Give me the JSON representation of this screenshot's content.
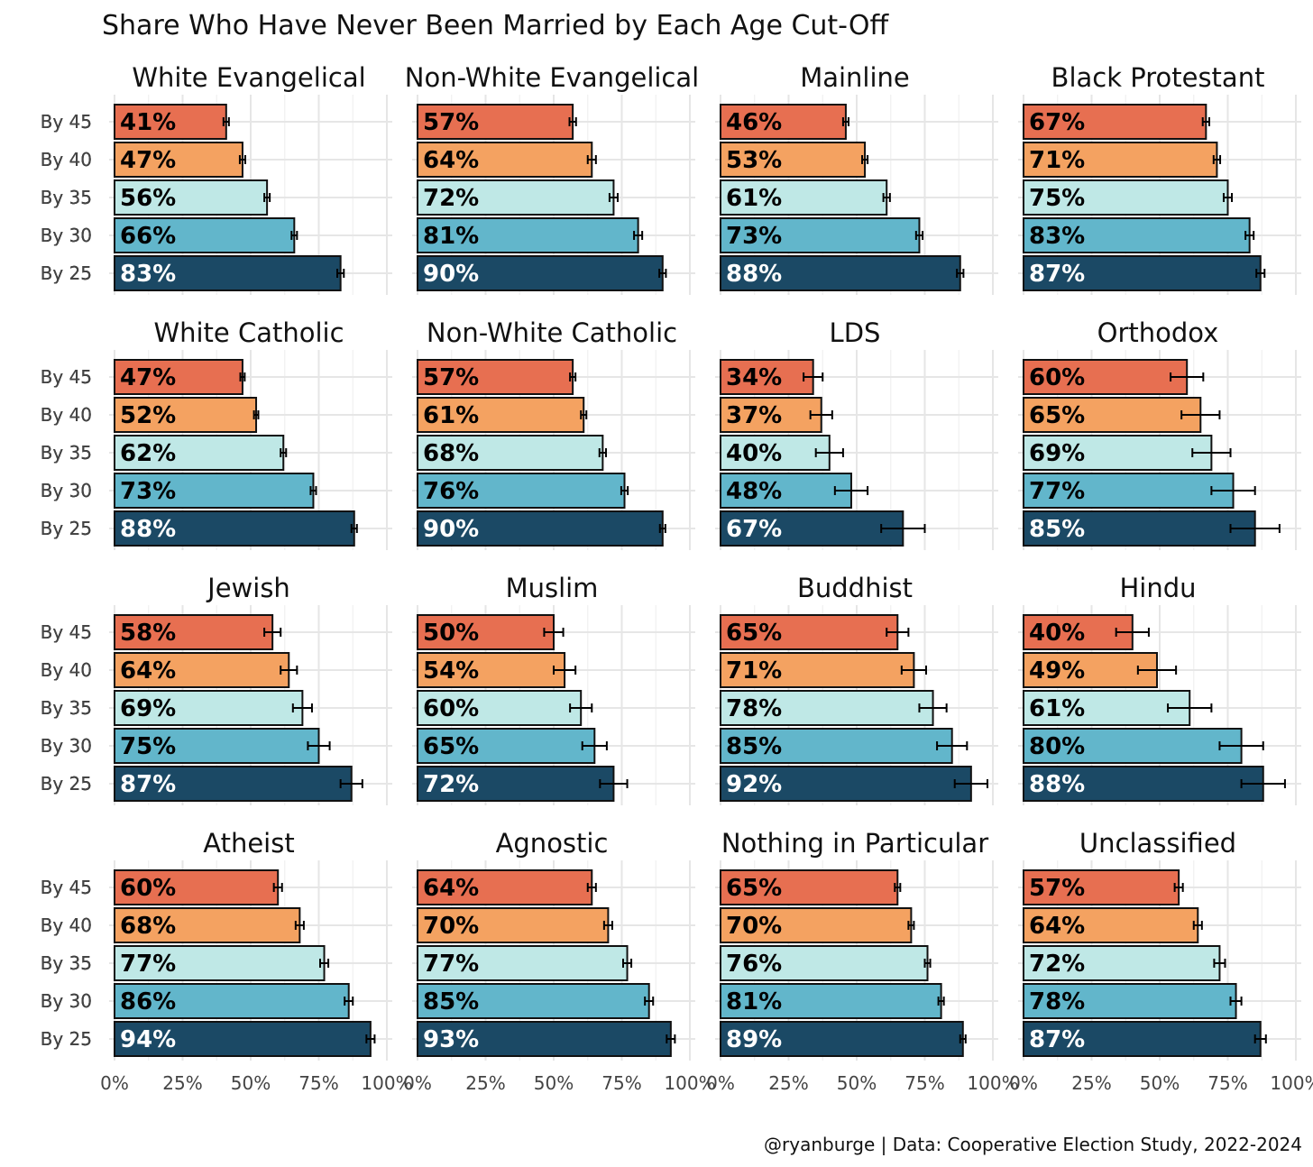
{
  "chart_data": {
    "type": "bar",
    "title": "Share Who Have Never Been Married by Each Age Cut-Off",
    "caption": "@ryanburge | Data: Cooperative Election Study, 2022-2024",
    "categories": [
      "By 45",
      "By 40",
      "By 35",
      "By 30",
      "By 25"
    ],
    "xlim": [
      0,
      100
    ],
    "x_ticks": [
      "0%",
      "25%",
      "50%",
      "75%",
      "100%"
    ],
    "colors": {
      "By 45": "#e76f51",
      "By 40": "#f4a261",
      "By 35": "#bfe8e6",
      "By 30": "#62b6cb",
      "By 25": "#1b4965"
    },
    "label_colors": {
      "By 45": "#000000",
      "By 40": "#000000",
      "By 35": "#000000",
      "By 30": "#000000",
      "By 25": "#ffffff"
    },
    "grid": true,
    "error_bars": true,
    "panels": [
      {
        "name": "White Evangelical",
        "values": [
          41,
          47,
          56,
          66,
          83
        ],
        "error": [
          1,
          1,
          1,
          1,
          1.2
        ]
      },
      {
        "name": "Non-White Evangelical",
        "values": [
          57,
          64,
          72,
          81,
          90
        ],
        "error": [
          1.2,
          1.5,
          1.5,
          1.5,
          1.2
        ]
      },
      {
        "name": "Mainline",
        "values": [
          46,
          53,
          61,
          73,
          88
        ],
        "error": [
          1,
          1,
          1.2,
          1.2,
          1.2
        ]
      },
      {
        "name": "Black Protestant",
        "values": [
          67,
          71,
          75,
          83,
          87
        ],
        "error": [
          1.2,
          1.2,
          1.5,
          1.5,
          1.5
        ]
      },
      {
        "name": "White Catholic",
        "values": [
          47,
          52,
          62,
          73,
          88
        ],
        "error": [
          0.8,
          0.8,
          1,
          1,
          1
        ]
      },
      {
        "name": "Non-White Catholic",
        "values": [
          57,
          61,
          68,
          76,
          90
        ],
        "error": [
          1,
          1,
          1.2,
          1.2,
          1
        ]
      },
      {
        "name": "LDS",
        "values": [
          34,
          37,
          40,
          48,
          67
        ],
        "error": [
          3.5,
          4,
          5,
          6,
          8
        ]
      },
      {
        "name": "Orthodox",
        "values": [
          60,
          65,
          69,
          77,
          85
        ],
        "error": [
          6,
          7,
          7,
          8,
          9
        ]
      },
      {
        "name": "Jewish",
        "values": [
          58,
          64,
          69,
          75,
          87
        ],
        "error": [
          3,
          3,
          3.5,
          4,
          4
        ]
      },
      {
        "name": "Muslim",
        "values": [
          50,
          54,
          60,
          65,
          72
        ],
        "error": [
          3.5,
          4,
          4,
          4.5,
          5
        ]
      },
      {
        "name": "Buddhist",
        "values": [
          65,
          71,
          78,
          85,
          92
        ],
        "error": [
          4,
          4.5,
          5,
          5.5,
          6
        ]
      },
      {
        "name": "Hindu",
        "values": [
          40,
          49,
          61,
          80,
          88
        ],
        "error": [
          6,
          7,
          8,
          8,
          8
        ]
      },
      {
        "name": "Atheist",
        "values": [
          60,
          68,
          77,
          86,
          94
        ],
        "error": [
          1.5,
          1.5,
          1.5,
          1.5,
          1.5
        ]
      },
      {
        "name": "Agnostic",
        "values": [
          64,
          70,
          77,
          85,
          93
        ],
        "error": [
          1.5,
          1.5,
          1.5,
          1.5,
          1.5
        ]
      },
      {
        "name": "Nothing in Particular",
        "values": [
          65,
          70,
          76,
          81,
          89
        ],
        "error": [
          1,
          1,
          1,
          1,
          1
        ]
      },
      {
        "name": "Unclassified",
        "values": [
          57,
          64,
          72,
          78,
          87
        ],
        "error": [
          1.5,
          1.5,
          2,
          2,
          2
        ]
      }
    ]
  }
}
